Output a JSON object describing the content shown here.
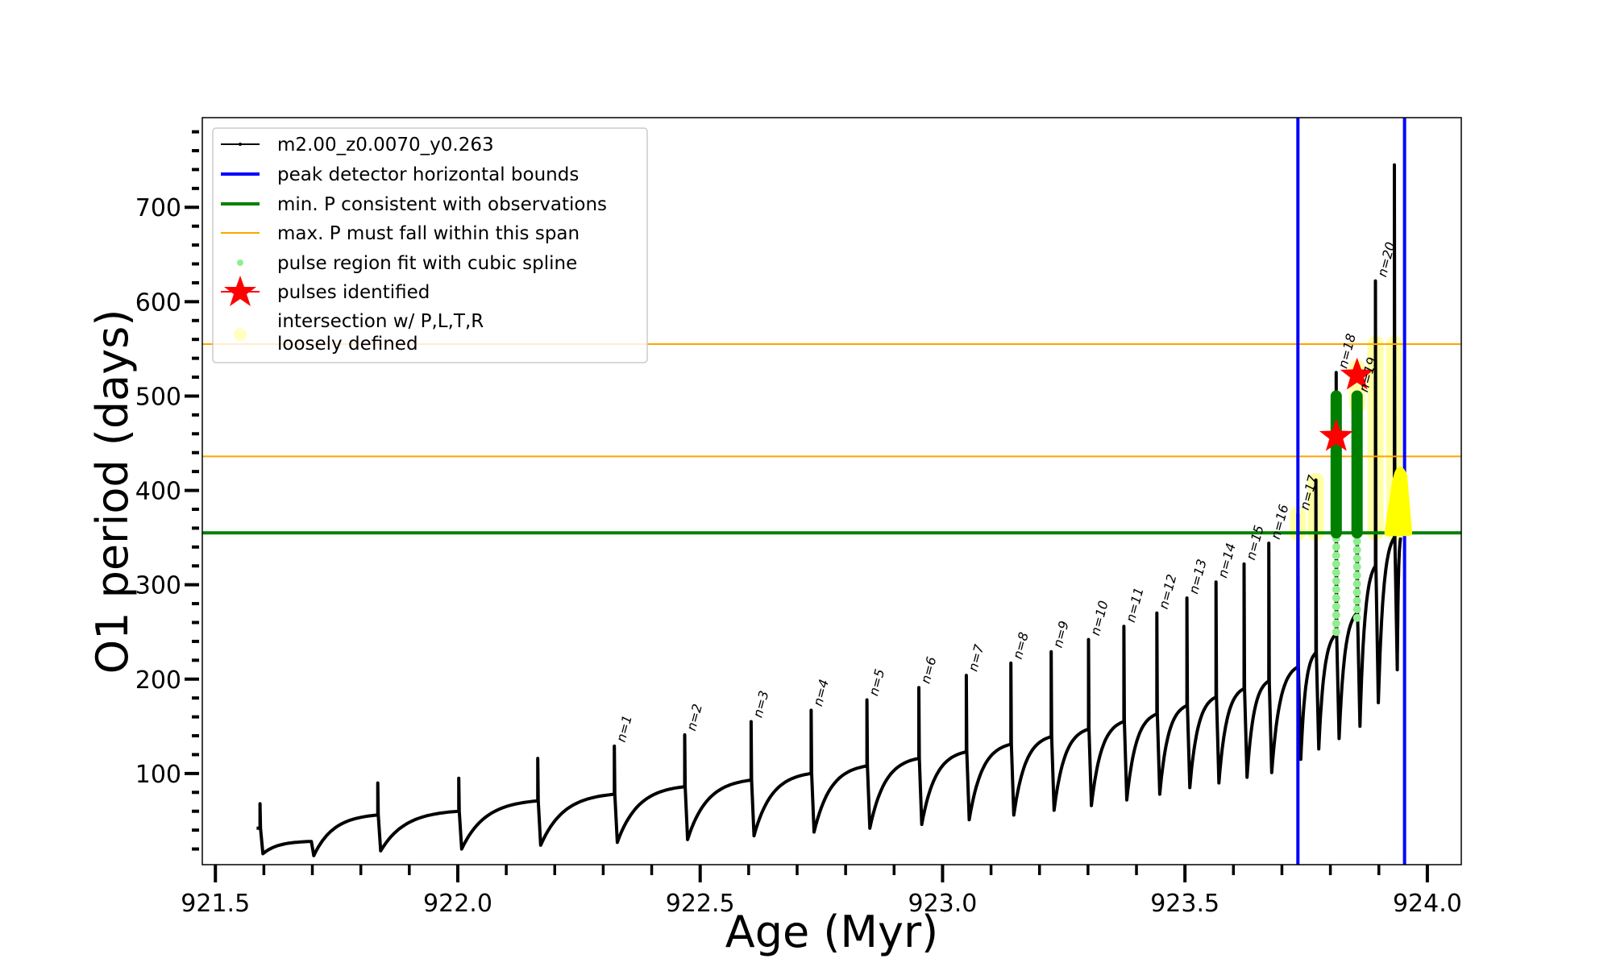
{
  "chart_data": {
    "type": "line",
    "xlabel": "Age (Myr)",
    "ylabel": "O1 period (days)",
    "xlim": [
      921.473,
      924.07
    ],
    "ylim": [
      3.4,
      795
    ],
    "xticks": [
      "921.5",
      "922.0",
      "922.5",
      "923.0",
      "923.5",
      "924.0"
    ],
    "yticks": [
      "100",
      "200",
      "300",
      "400",
      "500",
      "600",
      "700"
    ],
    "legend_position": "top-left",
    "legend": [
      "m2.00_z0.0070_y0.263",
      "peak detector horizontal bounds",
      "min. P consistent with observations",
      "max. P must fall within this span",
      "pulse region fit with cubic spline",
      "pulses identified",
      "intersection w/ P,L,T,R",
      "loosely defined"
    ],
    "colors": {
      "track": "#000000",
      "bounds": "#0000ff",
      "minP": "#008000",
      "maxP": "#ffa500",
      "spline": "#90ee90",
      "star": "#ff0000",
      "intersection": "#ffff00"
    },
    "start": {
      "age": 921.585,
      "value": 42
    },
    "pulses": [
      {
        "age": 921.592,
        "pre": 42,
        "peak": 68,
        "dip": 15,
        "label": ""
      },
      {
        "age": 921.697,
        "pre": 28,
        "peak": 28,
        "dip": 13,
        "label": ""
      },
      {
        "age": 921.835,
        "pre": 56,
        "peak": 90,
        "dip": 18,
        "label": ""
      },
      {
        "age": 922.002,
        "pre": 60,
        "peak": 95,
        "dip": 20,
        "label": ""
      },
      {
        "age": 922.165,
        "pre": 71,
        "peak": 116,
        "dip": 24,
        "label": ""
      },
      {
        "age": 922.323,
        "pre": 78,
        "peak": 129,
        "dip": 27,
        "label": "n=1"
      },
      {
        "age": 922.468,
        "pre": 86,
        "peak": 141,
        "dip": 30,
        "label": "n=2"
      },
      {
        "age": 922.605,
        "pre": 93,
        "peak": 155,
        "dip": 34,
        "label": "n=3"
      },
      {
        "age": 922.729,
        "pre": 100,
        "peak": 167,
        "dip": 38,
        "label": "n=4"
      },
      {
        "age": 922.844,
        "pre": 108,
        "peak": 178,
        "dip": 42,
        "label": "n=5"
      },
      {
        "age": 922.951,
        "pre": 116,
        "peak": 191,
        "dip": 46,
        "label": "n=6"
      },
      {
        "age": 923.049,
        "pre": 123,
        "peak": 204,
        "dip": 51,
        "label": "n=7"
      },
      {
        "age": 923.141,
        "pre": 131,
        "peak": 217,
        "dip": 56,
        "label": "n=8"
      },
      {
        "age": 923.224,
        "pre": 139,
        "peak": 229,
        "dip": 61,
        "label": "n=9"
      },
      {
        "age": 923.301,
        "pre": 147,
        "peak": 242,
        "dip": 66,
        "label": "n=10"
      },
      {
        "age": 923.374,
        "pre": 155,
        "peak": 256,
        "dip": 72,
        "label": "n=11"
      },
      {
        "age": 923.442,
        "pre": 163,
        "peak": 270,
        "dip": 78,
        "label": "n=12"
      },
      {
        "age": 923.504,
        "pre": 172,
        "peak": 286,
        "dip": 85,
        "label": "n=13"
      },
      {
        "age": 923.564,
        "pre": 181,
        "peak": 303,
        "dip": 90,
        "label": "n=14"
      },
      {
        "age": 923.622,
        "pre": 190,
        "peak": 322,
        "dip": 96,
        "label": "n=15"
      },
      {
        "age": 923.673,
        "pre": 198,
        "peak": 344,
        "dip": 101,
        "label": "n=16"
      },
      {
        "age": 923.733,
        "pre": 213,
        "peak": 375,
        "dip": 115,
        "label": "n=17"
      },
      {
        "age": 923.77,
        "pre": 228,
        "peak": 411,
        "dip": 126,
        "label": ""
      },
      {
        "age": 923.812,
        "pre": 248,
        "peak": 525,
        "dip": 137,
        "label": "n=18"
      },
      {
        "age": 923.855,
        "pre": 270,
        "peak": 500,
        "dip": 150,
        "label": "n=19"
      },
      {
        "age": 923.893,
        "pre": 320,
        "peak": 622,
        "dip": 175,
        "label": "n=20"
      },
      {
        "age": 923.932,
        "pre": 350,
        "peak": 745,
        "dip": 210,
        "label": ""
      }
    ],
    "end_age": 923.945,
    "min_period": 355,
    "max_period_span": [
      436,
      555
    ],
    "detector_bounds": [
      923.733,
      923.953
    ],
    "spline_regions": [
      {
        "age": 923.812,
        "from": 250,
        "to": 355
      },
      {
        "age": 923.855,
        "from": 265,
        "to": 355
      }
    ],
    "fit_regions": [
      {
        "age": 923.812,
        "from": 355,
        "to": 500
      },
      {
        "age": 923.855,
        "from": 355,
        "to": 500
      }
    ],
    "stars": [
      {
        "age": 923.812,
        "value": 457
      },
      {
        "age": 923.855,
        "value": 522
      }
    ],
    "intersections": [
      {
        "age": 923.733,
        "from": 355,
        "to": 375
      },
      {
        "age": 923.77,
        "from": 355,
        "to": 410
      },
      {
        "age": 923.855,
        "from": 490,
        "to": 530
      },
      {
        "age": 923.893,
        "from": 355,
        "to": 555
      },
      {
        "age": 923.932,
        "from": 355,
        "to": 555
      }
    ],
    "intersection_blob": {
      "age_from": 923.918,
      "age_to": 923.962,
      "from": 355,
      "to": 425
    }
  }
}
